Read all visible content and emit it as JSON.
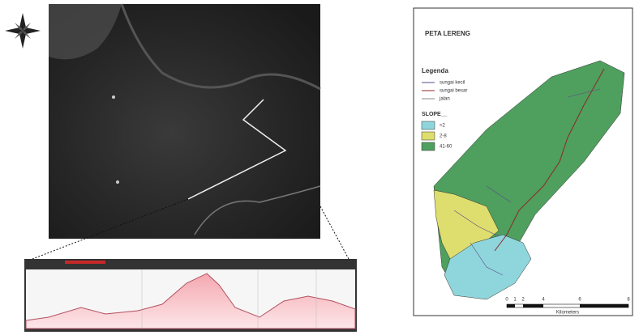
{
  "slope_map": {
    "title": "PETA LERENG",
    "legend": {
      "title": "Legenda",
      "lines": [
        "sungai kecil",
        "sungai besar",
        "jalan"
      ],
      "slope_title": "SLOPE__",
      "classes": [
        {
          "label": "<2",
          "color": "#8fd6dc"
        },
        {
          "label": "2-8",
          "color": "#dede6e"
        },
        {
          "label": "41-60",
          "color": "#4f9f5e"
        }
      ]
    },
    "scale": {
      "ticks": [
        "0",
        "1",
        "2",
        "4",
        "6",
        "8"
      ],
      "unit": "Kilometers"
    }
  }
}
